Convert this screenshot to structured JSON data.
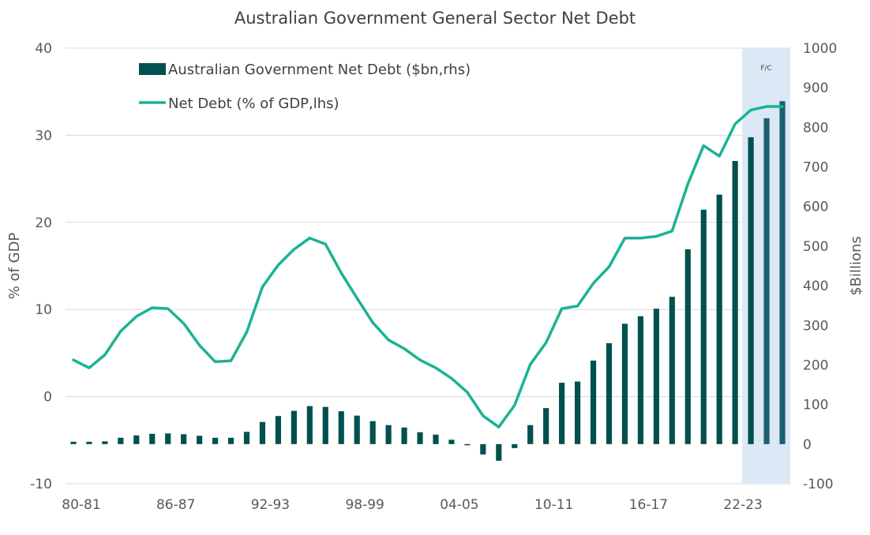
{
  "chart_data": {
    "type": "bar+line",
    "title": "Australian Government General Sector Net Debt",
    "x_tick_labels": [
      "80-81",
      "86-87",
      "92-93",
      "98-99",
      "04-05",
      "10-11",
      "16-17",
      "22-23"
    ],
    "y_left": {
      "label": "% of GDP",
      "ylim": [
        -10,
        40
      ],
      "ticks": [
        40,
        30,
        20,
        10,
        0,
        -10
      ],
      "tick_labels": [
        "40",
        "30",
        "20",
        "10",
        "0",
        "-10"
      ]
    },
    "y_right": {
      "label": "$Billions",
      "ylim": [
        -100,
        1000
      ],
      "ticks": [
        1000,
        900,
        800,
        700,
        600,
        500,
        400,
        300,
        200,
        100,
        0,
        -100
      ],
      "tick_labels": [
        "1000",
        "900",
        "800",
        "700",
        "600",
        "500",
        "400",
        "300",
        "200",
        "100",
        "0",
        "-100"
      ]
    },
    "forecast_label": "F/C",
    "legend": {
      "position": "top-left",
      "entries": [
        "Australian Government Net Debt ($bn,rhs)",
        "Net Debt (% of GDP,lhs)"
      ]
    },
    "categories": [
      "80-81",
      "81-82",
      "82-83",
      "83-84",
      "84-85",
      "85-86",
      "86-87",
      "87-88",
      "88-89",
      "89-90",
      "90-91",
      "91-92",
      "92-93",
      "93-94",
      "94-95",
      "95-96",
      "96-97",
      "97-98",
      "98-99",
      "99-00",
      "00-01",
      "01-02",
      "02-03",
      "03-04",
      "04-05",
      "05-06",
      "06-07",
      "07-08",
      "08-09",
      "09-10",
      "10-11",
      "11-12",
      "12-13",
      "13-14",
      "14-15",
      "15-16",
      "16-17",
      "17-18",
      "18-19",
      "19-20",
      "20-21",
      "21-22",
      "22-23",
      "23-24",
      "24-25",
      "25-26"
    ],
    "series": [
      {
        "name": "Australian Government Net Debt ($bn,rhs)",
        "type": "bar",
        "axis": "right",
        "color": "#00504f",
        "values": [
          6,
          6,
          7,
          16,
          22,
          26,
          27,
          25,
          21,
          16,
          16,
          31,
          56,
          71,
          84,
          96,
          94,
          83,
          72,
          58,
          48,
          42,
          30,
          24,
          11,
          -2,
          -26,
          -42,
          -10,
          48,
          91,
          155,
          158,
          211,
          255,
          304,
          323,
          342,
          372,
          492,
          592,
          630,
          715,
          775,
          823,
          866
        ]
      },
      {
        "name": "Net Debt (% of GDP,lhs)",
        "type": "line",
        "axis": "left",
        "color": "#1ab394",
        "values": [
          4.2,
          3.3,
          4.8,
          7.5,
          9.2,
          10.2,
          10.1,
          8.4,
          5.9,
          4.0,
          4.1,
          7.4,
          12.6,
          15.1,
          16.9,
          18.2,
          17.5,
          14.2,
          11.3,
          8.5,
          6.5,
          5.5,
          4.2,
          3.3,
          2.1,
          0.5,
          -2.2,
          -3.5,
          -1.0,
          3.7,
          6.2,
          10.1,
          10.4,
          13.0,
          14.9,
          18.2,
          18.2,
          18.4,
          19.0,
          24.4,
          28.8,
          27.6,
          31.3,
          32.9,
          33.3,
          33.3
        ]
      }
    ],
    "forecast_start_category": "23-24",
    "grid": {
      "horizontal": true,
      "vertical": false
    }
  }
}
